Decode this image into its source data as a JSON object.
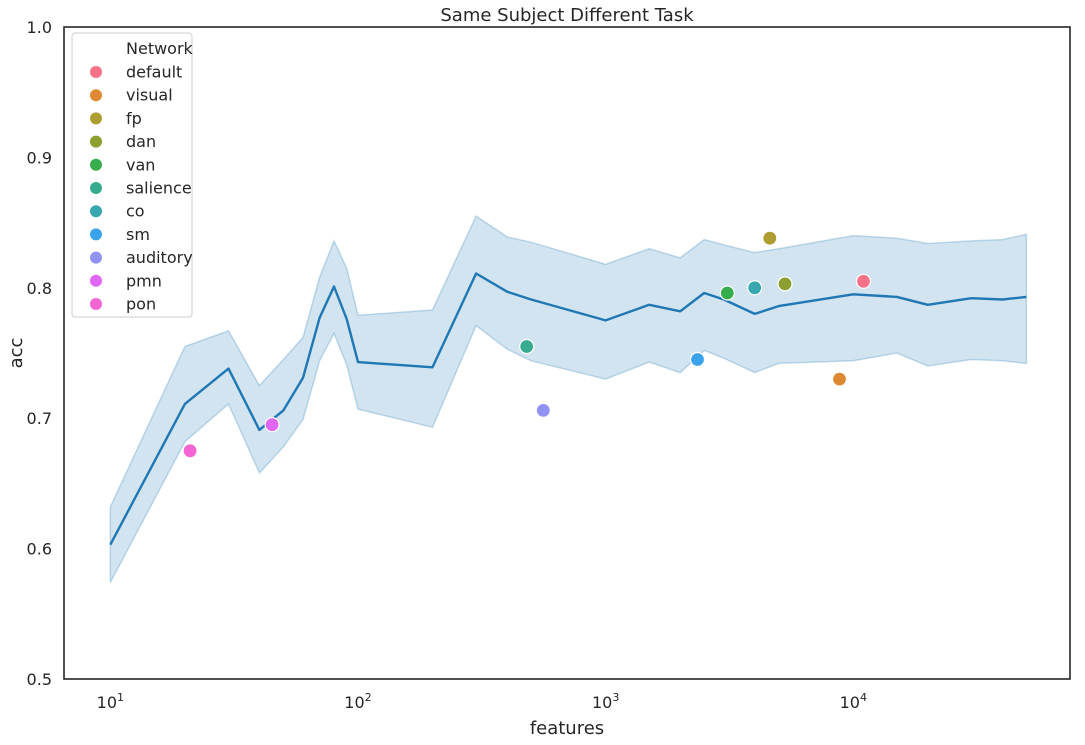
{
  "chart_data": {
    "type": "line",
    "title": "Same Subject Different Task",
    "xlabel": "features",
    "ylabel": "acc",
    "xscale": "log",
    "xlim": [
      6.5,
      75000
    ],
    "ylim": [
      0.5,
      1.0
    ],
    "xticks": [
      {
        "value": 10,
        "base": "10",
        "exp": "1"
      },
      {
        "value": 100,
        "base": "10",
        "exp": "2"
      },
      {
        "value": 1000,
        "base": "10",
        "exp": "3"
      },
      {
        "value": 10000,
        "base": "10",
        "exp": "4"
      }
    ],
    "yticks": [
      {
        "value": 0.5,
        "label": "0.5"
      },
      {
        "value": 0.6,
        "label": "0.6"
      },
      {
        "value": 0.7,
        "label": "0.7"
      },
      {
        "value": 0.8,
        "label": "0.8"
      },
      {
        "value": 0.9,
        "label": "0.9"
      },
      {
        "value": 1.0,
        "label": "1.0"
      }
    ],
    "grid": false,
    "legend_position": "top-left",
    "mean_line": {
      "color": "#1f77b4",
      "points": [
        {
          "x": 10,
          "y": 0.603,
          "lo": 0.574,
          "hi": 0.632
        },
        {
          "x": 20,
          "y": 0.711,
          "lo": 0.682,
          "hi": 0.755
        },
        {
          "x": 30,
          "y": 0.738,
          "lo": 0.711,
          "hi": 0.767
        },
        {
          "x": 40,
          "y": 0.691,
          "lo": 0.658,
          "hi": 0.725
        },
        {
          "x": 50,
          "y": 0.706,
          "lo": 0.678,
          "hi": 0.745
        },
        {
          "x": 60,
          "y": 0.731,
          "lo": 0.699,
          "hi": 0.762
        },
        {
          "x": 70,
          "y": 0.777,
          "lo": 0.744,
          "hi": 0.808
        },
        {
          "x": 80,
          "y": 0.801,
          "lo": 0.765,
          "hi": 0.836
        },
        {
          "x": 90,
          "y": 0.776,
          "lo": 0.741,
          "hi": 0.815
        },
        {
          "x": 100,
          "y": 0.743,
          "lo": 0.707,
          "hi": 0.779
        },
        {
          "x": 200,
          "y": 0.739,
          "lo": 0.693,
          "hi": 0.783
        },
        {
          "x": 300,
          "y": 0.811,
          "lo": 0.771,
          "hi": 0.855
        },
        {
          "x": 400,
          "y": 0.797,
          "lo": 0.753,
          "hi": 0.839
        },
        {
          "x": 500,
          "y": 0.791,
          "lo": 0.744,
          "hi": 0.835
        },
        {
          "x": 1000,
          "y": 0.775,
          "lo": 0.73,
          "hi": 0.818
        },
        {
          "x": 1500,
          "y": 0.787,
          "lo": 0.743,
          "hi": 0.83
        },
        {
          "x": 2000,
          "y": 0.782,
          "lo": 0.735,
          "hi": 0.823
        },
        {
          "x": 2500,
          "y": 0.796,
          "lo": 0.752,
          "hi": 0.837
        },
        {
          "x": 3000,
          "y": 0.791,
          "lo": 0.746,
          "hi": 0.833
        },
        {
          "x": 4000,
          "y": 0.78,
          "lo": 0.735,
          "hi": 0.827
        },
        {
          "x": 5000,
          "y": 0.786,
          "lo": 0.742,
          "hi": 0.83
        },
        {
          "x": 10000,
          "y": 0.795,
          "lo": 0.744,
          "hi": 0.84
        },
        {
          "x": 15000,
          "y": 0.793,
          "lo": 0.75,
          "hi": 0.838
        },
        {
          "x": 20000,
          "y": 0.787,
          "lo": 0.74,
          "hi": 0.834
        },
        {
          "x": 30000,
          "y": 0.792,
          "lo": 0.745,
          "hi": 0.836
        },
        {
          "x": 40000,
          "y": 0.791,
          "lo": 0.744,
          "hi": 0.837
        },
        {
          "x": 50000,
          "y": 0.793,
          "lo": 0.742,
          "hi": 0.841
        }
      ]
    },
    "legend_title": "Network",
    "networks": [
      {
        "name": "default",
        "color": "#f77189",
        "x": 11000,
        "y": 0.805
      },
      {
        "name": "visual",
        "color": "#dc8932",
        "x": 8800,
        "y": 0.73
      },
      {
        "name": "fp",
        "color": "#ae9d31",
        "x": 4600,
        "y": 0.838
      },
      {
        "name": "dan",
        "color": "#8ca030",
        "x": 5300,
        "y": 0.803
      },
      {
        "name": "van",
        "color": "#35ae4b",
        "x": 3100,
        "y": 0.796
      },
      {
        "name": "salience",
        "color": "#37ab8f",
        "x": 480,
        "y": 0.755
      },
      {
        "name": "co",
        "color": "#39a7b0",
        "x": 4000,
        "y": 0.8
      },
      {
        "name": "sm",
        "color": "#3ba3ec",
        "x": 2350,
        "y": 0.745
      },
      {
        "name": "auditory",
        "color": "#9093f4",
        "x": 560,
        "y": 0.706
      },
      {
        "name": "pmn",
        "color": "#e066f4",
        "x": 45,
        "y": 0.695
      },
      {
        "name": "pon",
        "color": "#f564d4",
        "x": 21,
        "y": 0.675
      }
    ]
  }
}
